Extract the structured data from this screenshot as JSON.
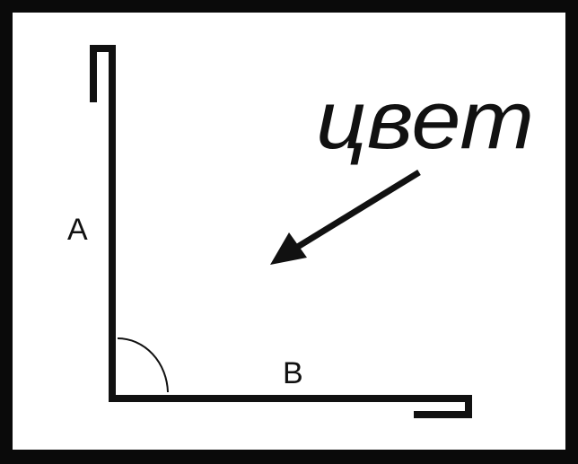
{
  "labels": {
    "side_a": "A",
    "side_b": "B",
    "color_note": "цвет"
  },
  "colors": {
    "frame": "#0a0a0a",
    "background": "#ffffff",
    "stroke": "#111111"
  },
  "icons": {
    "pointer": "arrow-icon",
    "angle": "angle-arc-icon"
  }
}
